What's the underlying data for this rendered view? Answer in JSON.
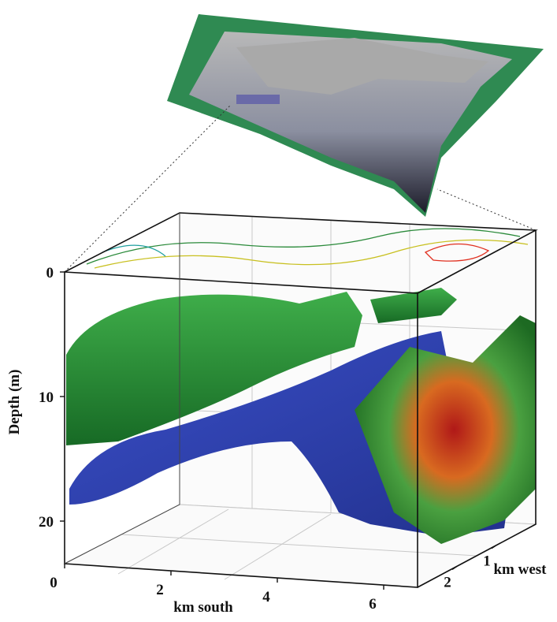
{
  "axes": {
    "depth": {
      "label": "Depth (m)",
      "ticks": [
        0,
        10,
        20
      ]
    },
    "south": {
      "label": "km south",
      "ticks": [
        0,
        2,
        4,
        6
      ]
    },
    "west": {
      "label": "km west",
      "ticks": [
        1,
        2
      ]
    }
  }
}
